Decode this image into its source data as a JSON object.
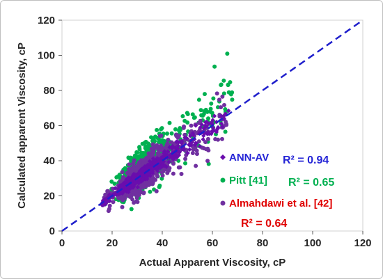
{
  "chart_data": {
    "type": "scatter",
    "xlabel": "Actual Apparent Viscosity, cP",
    "ylabel": "Calculated apparent Viscosity, cP",
    "xlim": [
      0,
      120
    ],
    "ylim": [
      0,
      120
    ],
    "xticks": [
      "0",
      "20",
      "40",
      "60",
      "80",
      "100",
      "120"
    ],
    "yticks": [
      "0",
      "20",
      "40",
      "60",
      "80",
      "100",
      "120"
    ],
    "grid": false,
    "reference_line": {
      "type": "y=x",
      "style": "dashed",
      "color": "#1f1fcc"
    },
    "legend_position": "inside-lower-right",
    "series": [
      {
        "name": "ANN-AV",
        "marker": "diamond",
        "color": "#6a0dad",
        "r2_label": "R² = 0.94",
        "r2_color": "#2424d6",
        "trend": {
          "x_start": 16,
          "x_end": 67,
          "spread": 3.5
        }
      },
      {
        "name": "Pitt [41]",
        "marker": "circle",
        "color": "#00b050",
        "r2_label": "R² = 0.65",
        "r2_color": "#00b050",
        "trend": {
          "x_start": 17,
          "x_end": 68,
          "spread": 12
        }
      },
      {
        "name": "Almahdawi et al. [42]",
        "marker": "circle",
        "color": "#7030a0",
        "r2_label": "R² = 0.64",
        "r2_color": "#e00000",
        "trend": {
          "x_start": 16,
          "x_end": 66,
          "spread": 9
        }
      }
    ],
    "legend_text_colors": [
      "#2424d6",
      "#00b050",
      "#e00000"
    ]
  }
}
